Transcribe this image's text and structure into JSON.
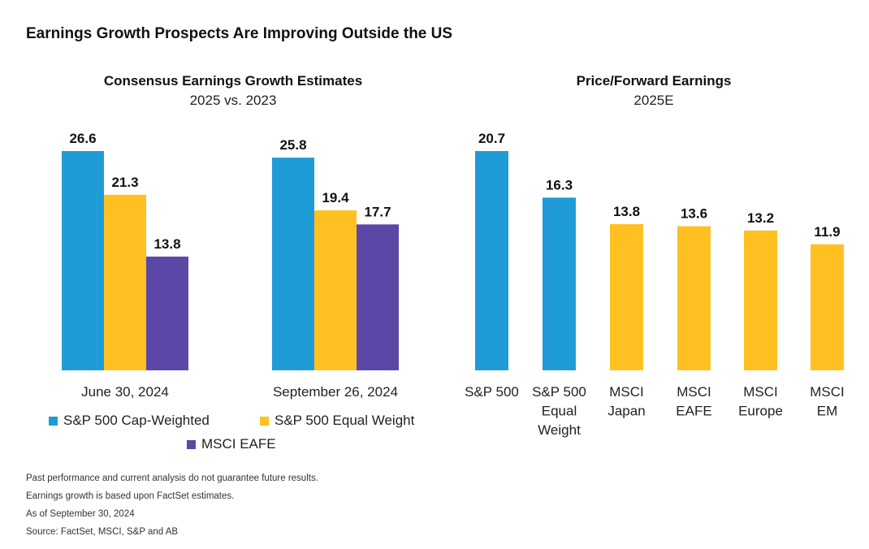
{
  "page": {
    "title": "Earnings Growth Prospects Are Improving Outside the US",
    "notes": [
      "Past performance and current analysis do not guarantee future results.",
      "Earnings growth is based upon FactSet estimates.",
      "As of September 30, 2024",
      "Source: FactSet, MSCI, S&P and AB"
    ]
  },
  "legend": [
    {
      "name": "S&P 500 Cap-Weighted",
      "color": "#1F9BD7"
    },
    {
      "name": "S&P 500 Equal Weight",
      "color": "#FFC122"
    },
    {
      "name": "MSCI EAFE",
      "color": "#5B47A6"
    }
  ],
  "chart_data": [
    {
      "type": "bar",
      "title": "Consensus Earnings Growth Estimates",
      "subtitle": "2025 vs. 2023",
      "categories": [
        "June 30, 2024",
        "September 26, 2024"
      ],
      "series": [
        {
          "name": "S&P 500 Cap-Weighted",
          "color": "#1F9BD7",
          "values": [
            26.6,
            25.8
          ]
        },
        {
          "name": "S&P 500 Equal Weight",
          "color": "#FFC122",
          "values": [
            21.3,
            19.4
          ]
        },
        {
          "name": "MSCI EAFE",
          "color": "#5B47A6",
          "values": [
            13.8,
            17.7
          ]
        }
      ],
      "ylim": [
        0,
        26.6
      ],
      "grid": false,
      "data_labels": true,
      "legend_position": "bottom"
    },
    {
      "type": "bar",
      "title": "Price/Forward Earnings",
      "subtitle": "2025E",
      "categories": [
        "S&P 500",
        "S&P 500 Equal Weight",
        "MSCI Japan",
        "MSCI EAFE",
        "MSCI Europe",
        "MSCI EM"
      ],
      "category_label_lines": [
        [
          "S&P 500"
        ],
        [
          "S&P 500",
          "Equal",
          "Weight"
        ],
        [
          "MSCI",
          "Japan"
        ],
        [
          "MSCI",
          "EAFE"
        ],
        [
          "MSCI",
          "Europe"
        ],
        [
          "MSCI",
          "EM"
        ]
      ],
      "values": [
        20.7,
        16.3,
        13.8,
        13.6,
        13.2,
        11.9
      ],
      "colors": [
        "#1F9BD7",
        "#1F9BD7",
        "#FFC122",
        "#FFC122",
        "#FFC122",
        "#FFC122"
      ],
      "ylim": [
        0,
        20.7
      ],
      "grid": false,
      "data_labels": true
    }
  ]
}
